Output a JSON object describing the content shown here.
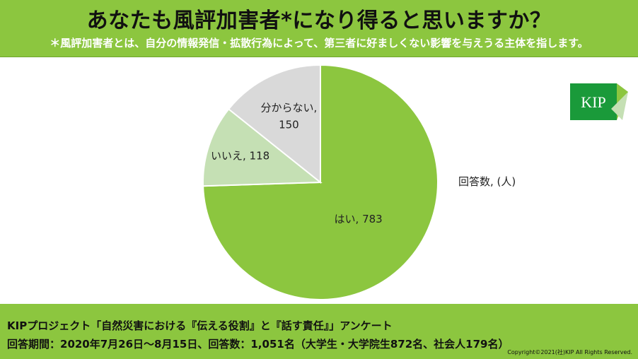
{
  "header": {
    "title": "あなたも風評加害者*になり得ると思いますか？",
    "subtitle": "＊風評加害者とは、自分の情報発信・拡散行為によって、第三者に好ましくない影響を与えうる主体を指します。"
  },
  "unit_label": "回答数, (人)",
  "logo": {
    "text": "KIP",
    "color": "#1a9a3a"
  },
  "footer": {
    "line1": "KIPプロジェクト「自然災害における『伝える役割』と『話す責任』」アンケート",
    "line2": "回答期間：2020年7月26日～8月15日、回答数：1,051名（大学生・大学院生872名、社会人179名）",
    "copyright": "Copyright©2021(社)KIP All Rights Reserved."
  },
  "chart_data": {
    "type": "pie",
    "start_angle_deg": 0,
    "direction": "clockwise",
    "slices": [
      {
        "label": "はい, 783",
        "category": "はい",
        "value": 783,
        "color": "#8cc63f"
      },
      {
        "label": "いいえ, 118",
        "category": "いいえ",
        "value": 118,
        "color": "#c5e0b4"
      },
      {
        "label": "分からない,",
        "label2": "150",
        "category": "分からない",
        "value": 150,
        "color": "#d9d9d9"
      }
    ]
  }
}
